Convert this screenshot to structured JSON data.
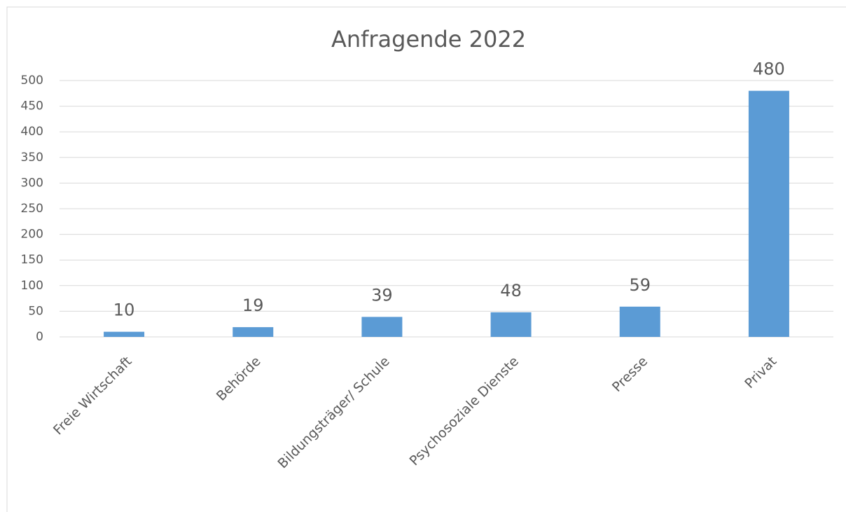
{
  "chart_data": {
    "type": "bar",
    "title": "Anfragende 2022",
    "categories": [
      "Freie Wirtschaft",
      "Behörde",
      "Bildungsträger/ Schule",
      "Psychosoziale Dienste",
      "Presse",
      "Privat"
    ],
    "values": [
      10,
      19,
      39,
      48,
      59,
      480
    ],
    "color": "#5b9bd5",
    "ylim": [
      0,
      500
    ],
    "yticks": [
      0,
      50,
      100,
      150,
      200,
      250,
      300,
      350,
      400,
      450,
      500
    ],
    "grid": true
  }
}
